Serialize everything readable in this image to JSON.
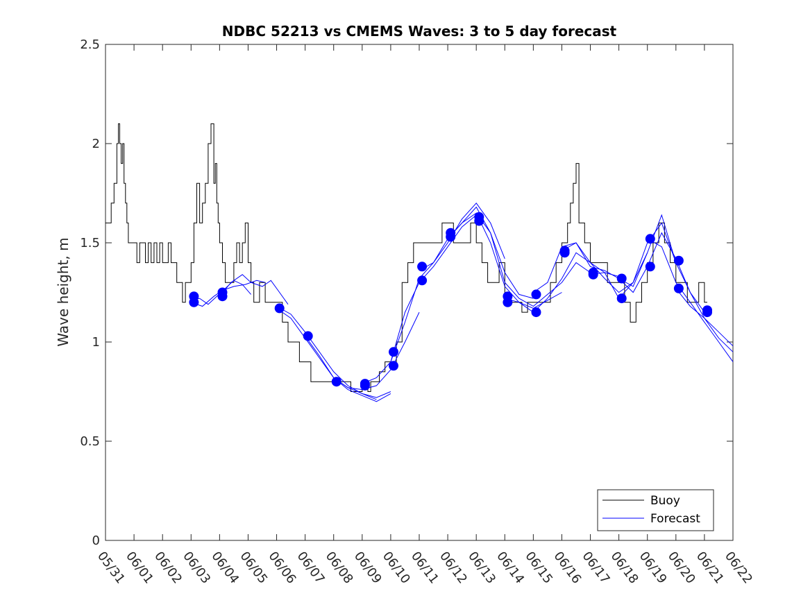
{
  "chart_data": {
    "type": "line",
    "title": "NDBC 52213 vs CMEMS Waves: 3 to 5 day forecast",
    "ylabel": "Wave height, m",
    "xlabel": "",
    "xlim_days": [
      0,
      22
    ],
    "ylim": [
      0,
      2.5
    ],
    "yticks": [
      0,
      0.5,
      1,
      1.5,
      2,
      2.5
    ],
    "ytick_labels": [
      "0",
      "0.5",
      "1",
      "1.5",
      "2",
      "2.5"
    ],
    "xtick_labels": [
      "05/31",
      "06/01",
      "06/02",
      "06/03",
      "06/04",
      "06/05",
      "06/06",
      "06/07",
      "06/08",
      "06/09",
      "06/10",
      "06/11",
      "06/12",
      "06/13",
      "06/14",
      "06/15",
      "06/16",
      "06/17",
      "06/18",
      "06/19",
      "06/20",
      "06/21",
      "06/22"
    ],
    "legend": {
      "location": "bottom-right",
      "entries": [
        {
          "name": "Buoy",
          "color": "#000000"
        },
        {
          "name": "Forecast",
          "color": "#0000ff"
        }
      ]
    },
    "colors": {
      "buoy": "#000000",
      "forecast": "#0000ff",
      "marker": "#0000ff"
    },
    "buoy": {
      "name": "Buoy",
      "x": [
        0,
        0.1,
        0.2,
        0.3,
        0.4,
        0.45,
        0.5,
        0.55,
        0.6,
        0.65,
        0.7,
        0.75,
        0.8,
        0.9,
        1.0,
        1.1,
        1.2,
        1.3,
        1.4,
        1.5,
        1.6,
        1.7,
        1.8,
        1.9,
        2.0,
        2.1,
        2.2,
        2.3,
        2.4,
        2.5,
        2.6,
        2.7,
        2.8,
        2.9,
        3.0,
        3.1,
        3.2,
        3.3,
        3.4,
        3.5,
        3.6,
        3.7,
        3.8,
        3.85,
        3.9,
        3.95,
        4.0,
        4.1,
        4.2,
        4.3,
        4.4,
        4.5,
        4.6,
        4.7,
        4.8,
        4.9,
        5.0,
        5.1,
        5.2,
        5.3,
        5.4,
        5.5,
        5.6,
        5.7,
        5.8,
        5.9,
        6.0,
        6.2,
        6.4,
        6.6,
        6.8,
        7.0,
        7.2,
        7.4,
        7.6,
        7.8,
        8.0,
        8.2,
        8.4,
        8.6,
        8.8,
        9.0,
        9.2,
        9.3,
        9.4,
        9.6,
        9.8,
        10.0,
        10.2,
        10.4,
        10.6,
        10.8,
        11.0,
        11.2,
        11.4,
        11.6,
        11.8,
        12.0,
        12.2,
        12.4,
        12.6,
        12.8,
        13.0,
        13.2,
        13.4,
        13.6,
        13.8,
        14.0,
        14.2,
        14.4,
        14.6,
        14.8,
        15.0,
        15.2,
        15.4,
        15.6,
        15.8,
        16.0,
        16.1,
        16.2,
        16.3,
        16.4,
        16.5,
        16.6,
        16.8,
        17.0,
        17.2,
        17.4,
        17.6,
        17.8,
        18.0,
        18.2,
        18.4,
        18.6,
        18.8,
        19.0,
        19.2,
        19.4,
        19.6,
        19.8,
        20.0,
        20.2,
        20.4,
        20.6,
        20.8,
        21.0,
        21.1
      ],
      "values": [
        1.6,
        1.6,
        1.7,
        1.8,
        2.0,
        2.1,
        2.0,
        1.9,
        2.0,
        1.8,
        1.7,
        1.6,
        1.5,
        1.5,
        1.5,
        1.4,
        1.5,
        1.5,
        1.4,
        1.5,
        1.4,
        1.5,
        1.4,
        1.5,
        1.4,
        1.4,
        1.5,
        1.4,
        1.4,
        1.3,
        1.3,
        1.2,
        1.3,
        1.3,
        1.4,
        1.6,
        1.8,
        1.6,
        1.7,
        1.8,
        2.0,
        2.1,
        1.8,
        1.9,
        1.7,
        1.6,
        1.5,
        1.4,
        1.3,
        1.3,
        1.3,
        1.4,
        1.5,
        1.4,
        1.5,
        1.6,
        1.4,
        1.3,
        1.2,
        1.2,
        1.3,
        1.3,
        1.2,
        1.2,
        1.2,
        1.2,
        1.2,
        1.1,
        1.0,
        1.0,
        0.9,
        0.9,
        0.8,
        0.8,
        0.8,
        0.8,
        0.8,
        0.8,
        0.8,
        0.75,
        0.75,
        0.8,
        0.75,
        0.8,
        0.8,
        0.85,
        0.9,
        0.9,
        1.0,
        1.3,
        1.4,
        1.5,
        1.5,
        1.5,
        1.5,
        1.5,
        1.6,
        1.6,
        1.5,
        1.5,
        1.5,
        1.6,
        1.5,
        1.4,
        1.3,
        1.3,
        1.4,
        1.2,
        1.2,
        1.2,
        1.15,
        1.2,
        1.2,
        1.2,
        1.2,
        1.3,
        1.4,
        1.5,
        1.5,
        1.6,
        1.7,
        1.8,
        1.9,
        1.6,
        1.5,
        1.4,
        1.4,
        1.4,
        1.3,
        1.3,
        1.3,
        1.2,
        1.1,
        1.2,
        1.3,
        1.4,
        1.5,
        1.6,
        1.5,
        1.4,
        1.3,
        1.3,
        1.2,
        1.2,
        1.3,
        1.2,
        1.2
      ]
    },
    "forecast_series": [
      {
        "name": "Forecast",
        "x": [
          3,
          3.3,
          3.6,
          3.9,
          4.2,
          4.5,
          4.8,
          5.1
        ],
        "values": [
          1.21,
          1.22,
          1.19,
          1.23,
          1.27,
          1.31,
          1.29,
          1.24
        ]
      },
      {
        "name": "Forecast",
        "x": [
          3,
          3.4,
          3.8,
          4.1,
          4.5,
          4.9,
          5.3,
          5.6
        ],
        "values": [
          1.2,
          1.18,
          1.23,
          1.26,
          1.28,
          1.29,
          1.31,
          1.3
        ]
      },
      {
        "name": "Forecast",
        "x": [
          4,
          4.4,
          4.8,
          5.1,
          5.5,
          5.8,
          6.1,
          6.4
        ],
        "values": [
          1.23,
          1.3,
          1.34,
          1.3,
          1.28,
          1.31,
          1.25,
          1.19
        ]
      },
      {
        "name": "Forecast",
        "x": [
          6,
          6.5,
          7.0,
          7.5,
          8.0,
          8.5,
          9.0,
          9.5,
          10.0
        ],
        "values": [
          1.17,
          1.12,
          1.02,
          0.92,
          0.82,
          0.76,
          0.73,
          0.7,
          0.74
        ]
      },
      {
        "name": "Forecast",
        "x": [
          6,
          6.5,
          7.0,
          7.5,
          8.0,
          8.5,
          9.0,
          9.5
        ],
        "values": [
          1.18,
          1.14,
          1.05,
          0.95,
          0.85,
          0.78,
          0.74,
          0.71
        ]
      },
      {
        "name": "Forecast",
        "x": [
          7,
          7.5,
          8.0,
          8.5,
          9.0,
          9.5,
          10.0
        ],
        "values": [
          1.03,
          0.93,
          0.82,
          0.77,
          0.74,
          0.72,
          0.75
        ]
      },
      {
        "name": "Forecast",
        "x": [
          8,
          8.5,
          9.0,
          9.5,
          10.0,
          10.5,
          11.0
        ],
        "values": [
          0.82,
          0.77,
          0.76,
          0.78,
          0.86,
          1.0,
          1.15
        ]
      },
      {
        "name": "Forecast",
        "x": [
          9,
          9.5,
          10.0,
          10.5,
          11.0,
          11.5,
          12.0,
          12.5,
          13.0
        ],
        "values": [
          0.79,
          0.82,
          0.9,
          1.15,
          1.3,
          1.38,
          1.48,
          1.58,
          1.64
        ]
      },
      {
        "name": "Forecast",
        "x": [
          10,
          10.5,
          11.0,
          11.5,
          12.0,
          12.5,
          13.0,
          13.5,
          14.0
        ],
        "values": [
          0.9,
          1.1,
          1.32,
          1.4,
          1.5,
          1.62,
          1.7,
          1.6,
          1.42
        ]
      },
      {
        "name": "Forecast",
        "x": [
          11,
          11.5,
          12.0,
          12.5,
          13.0,
          13.5,
          14.0,
          14.5,
          15.0
        ],
        "values": [
          1.36,
          1.4,
          1.52,
          1.6,
          1.68,
          1.55,
          1.35,
          1.24,
          1.22
        ]
      },
      {
        "name": "Forecast",
        "x": [
          12,
          12.5,
          13.0,
          13.5,
          14.0,
          14.5,
          15.0,
          15.5,
          16.0
        ],
        "values": [
          1.52,
          1.6,
          1.65,
          1.5,
          1.28,
          1.2,
          1.17,
          1.21,
          1.25
        ]
      },
      {
        "name": "Forecast",
        "x": [
          13,
          13.5,
          14.0,
          14.5,
          15.0,
          15.5,
          16.0,
          16.5,
          17.0
        ],
        "values": [
          1.65,
          1.55,
          1.3,
          1.22,
          1.18,
          1.24,
          1.3,
          1.4,
          1.35
        ]
      },
      {
        "name": "Forecast",
        "x": [
          14,
          14.5,
          15.0,
          15.5,
          16.0,
          16.5,
          17.0,
          17.5,
          18.0
        ],
        "values": [
          1.22,
          1.2,
          1.15,
          1.22,
          1.32,
          1.45,
          1.4,
          1.35,
          1.33
        ]
      },
      {
        "name": "Forecast",
        "x": [
          15,
          15.5,
          16.0,
          16.5,
          17.0,
          17.5,
          18.0,
          18.5,
          19.0
        ],
        "values": [
          1.25,
          1.3,
          1.48,
          1.5,
          1.38,
          1.36,
          1.32,
          1.28,
          1.45
        ]
      },
      {
        "name": "Forecast",
        "x": [
          16,
          16.5,
          17.0,
          17.5,
          18.0,
          18.5,
          19.0,
          19.5,
          20.0
        ],
        "values": [
          1.46,
          1.5,
          1.4,
          1.32,
          1.25,
          1.3,
          1.5,
          1.6,
          1.4
        ]
      },
      {
        "name": "Forecast",
        "x": [
          17,
          17.5,
          18.0,
          18.5,
          19.0,
          19.5,
          20.0,
          20.5,
          21.0
        ],
        "values": [
          1.34,
          1.35,
          1.22,
          1.3,
          1.45,
          1.64,
          1.4,
          1.25,
          1.15
        ]
      },
      {
        "name": "Forecast",
        "x": [
          18,
          18.5,
          19.0,
          19.5,
          20.0,
          20.5,
          21.0,
          21.5,
          22.0
        ],
        "values": [
          1.32,
          1.25,
          1.38,
          1.55,
          1.42,
          1.25,
          1.12,
          1.02,
          0.95
        ]
      },
      {
        "name": "Forecast",
        "x": [
          19,
          19.5,
          20.0,
          20.5,
          21.0,
          21.5,
          22.0
        ],
        "values": [
          1.52,
          1.48,
          1.3,
          1.2,
          1.1,
          1.0,
          0.9
        ]
      },
      {
        "name": "Forecast",
        "x": [
          20,
          20.5,
          21.0,
          21.5,
          22.0
        ],
        "values": [
          1.27,
          1.18,
          1.12,
          1.05,
          0.98
        ]
      }
    ],
    "markers": {
      "name": "Forecast start",
      "x": [
        3.1,
        3.1,
        4.1,
        4.1,
        6.1,
        7.1,
        8.1,
        9.1,
        9.1,
        10.1,
        10.1,
        11.1,
        11.1,
        12.1,
        12.1,
        13.1,
        13.1,
        14.1,
        14.1,
        15.1,
        15.1,
        16.1,
        16.1,
        17.1,
        17.1,
        18.1,
        18.1,
        19.1,
        19.1,
        20.1,
        20.1,
        21.1,
        21.1
      ],
      "values": [
        1.23,
        1.2,
        1.25,
        1.23,
        1.17,
        1.03,
        0.8,
        0.79,
        0.78,
        0.95,
        0.88,
        1.38,
        1.31,
        1.55,
        1.53,
        1.63,
        1.61,
        1.23,
        1.2,
        1.24,
        1.15,
        1.46,
        1.45,
        1.35,
        1.34,
        1.32,
        1.22,
        1.52,
        1.38,
        1.41,
        1.27,
        1.16,
        1.15
      ]
    }
  }
}
